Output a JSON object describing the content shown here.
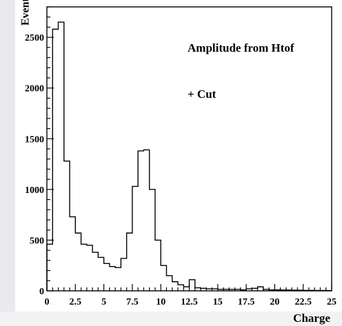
{
  "chart_data": {
    "type": "histogram",
    "title": "",
    "xlabel": "Charge",
    "ylabel": "Events",
    "annotations": [
      "Amplitude from Htof",
      "+ Cut"
    ],
    "xlim": [
      0,
      25
    ],
    "ylim": [
      0,
      2800
    ],
    "x_ticks": [
      0,
      2.5,
      5,
      7.5,
      10,
      12.5,
      15,
      17.5,
      20,
      22.5,
      25
    ],
    "x_tick_labels": [
      "0",
      "2.5",
      "5",
      "7.5",
      "10",
      "12.5",
      "15",
      "17.5",
      "20",
      "22.5",
      "25"
    ],
    "y_ticks": [
      0,
      500,
      1000,
      1500,
      2000,
      2500
    ],
    "y_tick_labels": [
      "0",
      "500",
      "1000",
      "1500",
      "2000",
      "2500"
    ],
    "bin_width": 0.5,
    "bin_edges_start": 0,
    "values": [
      460,
      2580,
      2650,
      1280,
      730,
      570,
      460,
      450,
      380,
      330,
      270,
      240,
      230,
      320,
      570,
      1030,
      1380,
      1390,
      1000,
      500,
      250,
      150,
      90,
      60,
      40,
      110,
      30,
      25,
      20,
      20,
      15,
      15,
      15,
      15,
      10,
      20,
      25,
      40,
      15,
      10,
      10,
      8,
      8,
      6,
      6,
      5,
      5,
      4,
      4,
      3
    ],
    "grid": false,
    "legend": "none",
    "line_color": "#000000"
  }
}
